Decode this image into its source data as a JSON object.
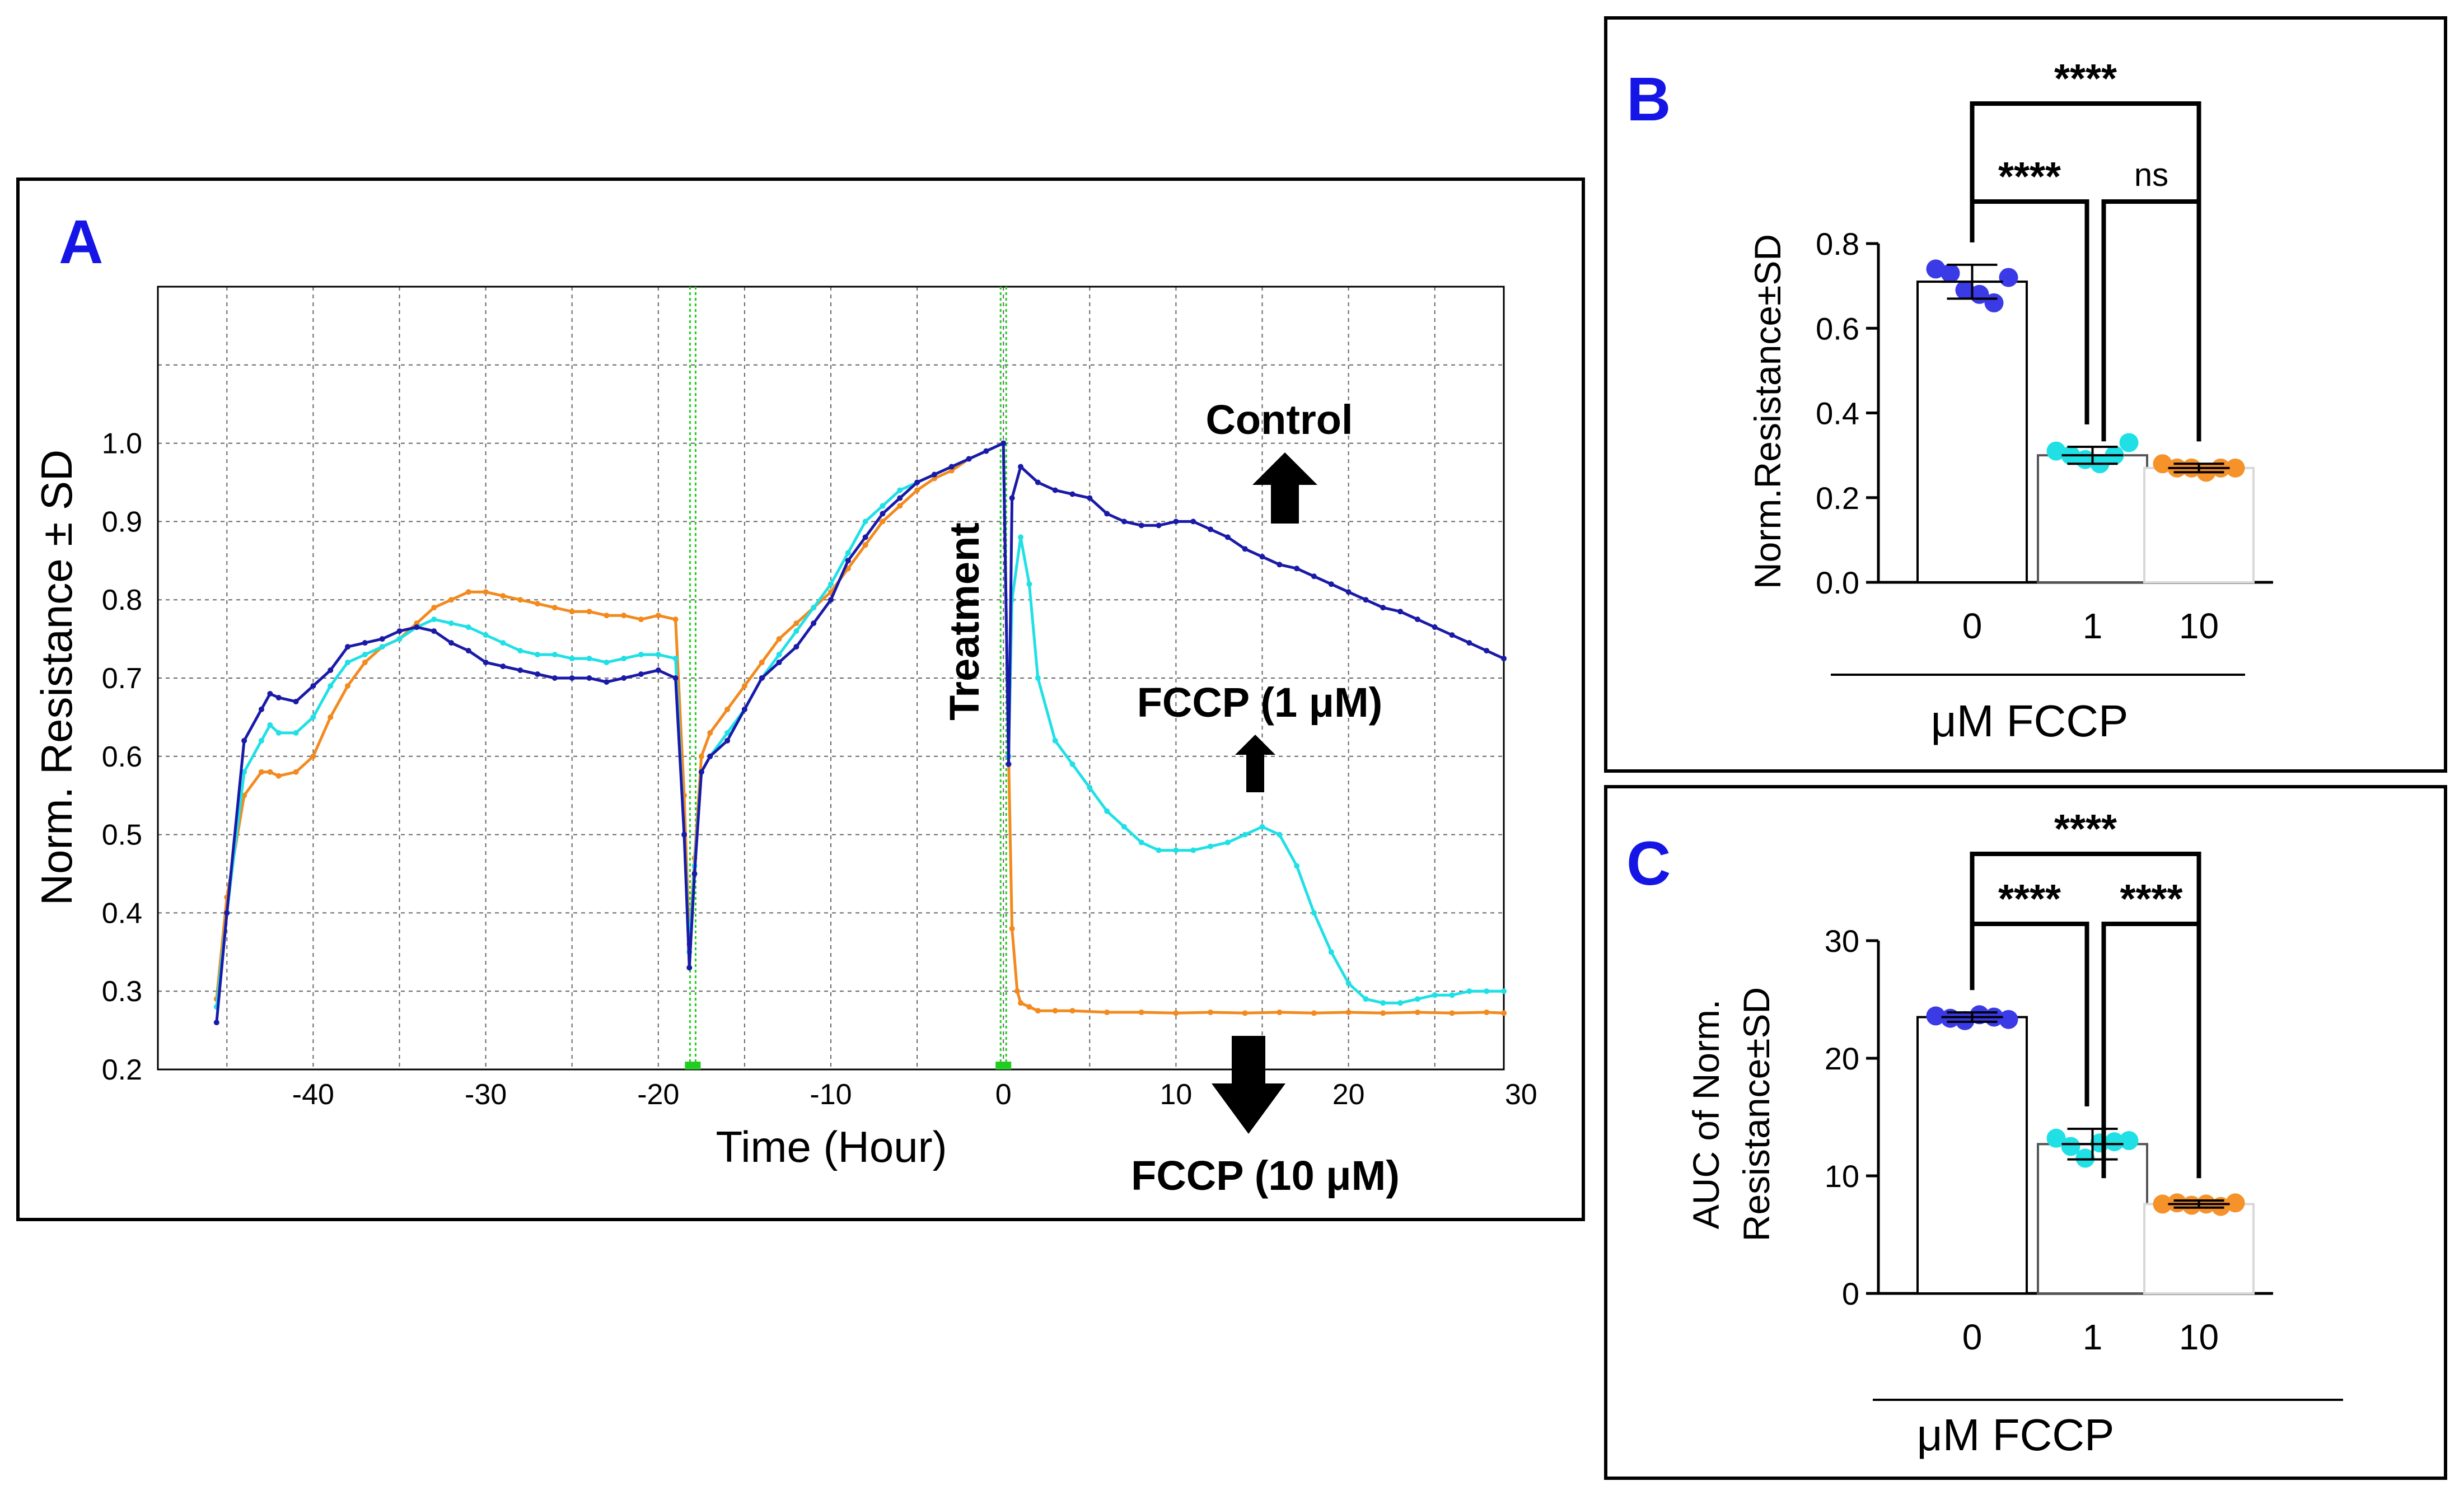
{
  "chart_data": [
    {
      "panel_letter": "A",
      "type": "line",
      "xlabel": "Time (Hour)",
      "ylabel": "Norm. Resistance ± SD",
      "xlim": [
        -49,
        29
      ],
      "ylim": [
        0.2,
        1.2
      ],
      "x_ticks": [
        -40,
        -30,
        -20,
        -10,
        0,
        10,
        20,
        30
      ],
      "y_ticks": [
        0.2,
        0.3,
        0.4,
        0.5,
        0.6,
        0.7,
        0.8,
        0.9,
        1.0
      ],
      "grid": true,
      "annotations": [
        "Control",
        "FCCP (1 μM)",
        "FCCP (10 μM)",
        "Treatment"
      ],
      "vertical_markers": [
        -18,
        0
      ],
      "colors": {
        "control": "#1a1aa8",
        "fccp_1": "#20e0e6",
        "fccp_10": "#f28a1e",
        "marker": "#22cc22"
      },
      "series": [
        {
          "x": [
            -45.6,
            -45,
            -44,
            -43,
            -42.5,
            -42,
            -41,
            -40,
            -39,
            -38,
            -37,
            -36,
            -35,
            -34,
            -33,
            -32,
            -31,
            -30,
            -29,
            -28,
            -27,
            -26,
            -25,
            -24,
            -23,
            -22,
            -21,
            -20,
            -19,
            -18.5,
            -18.2,
            -17.9,
            -17.5,
            -17,
            -16,
            -15,
            -14,
            -13,
            -12,
            -11,
            -10,
            -9,
            -8,
            -7,
            -6,
            -5,
            -4,
            -3,
            -2,
            -1,
            0,
            0.3,
            0.5,
            1,
            2,
            3,
            4,
            5,
            6,
            7,
            8,
            9,
            10,
            11,
            12,
            13,
            14,
            15,
            16,
            17,
            18,
            19,
            20,
            21,
            22,
            23,
            24,
            25,
            26,
            27,
            28,
            29
          ],
          "y": [
            0.26,
            0.4,
            0.62,
            0.66,
            0.68,
            0.675,
            0.67,
            0.69,
            0.71,
            0.74,
            0.745,
            0.75,
            0.76,
            0.765,
            0.76,
            0.745,
            0.735,
            0.72,
            0.715,
            0.71,
            0.705,
            0.7,
            0.7,
            0.7,
            0.695,
            0.7,
            0.705,
            0.71,
            0.7,
            0.5,
            0.33,
            0.45,
            0.58,
            0.6,
            0.62,
            0.66,
            0.7,
            0.72,
            0.74,
            0.77,
            0.8,
            0.85,
            0.88,
            0.91,
            0.93,
            0.95,
            0.96,
            0.97,
            0.98,
            0.99,
            1.0,
            0.59,
            0.93,
            0.97,
            0.95,
            0.94,
            0.935,
            0.93,
            0.91,
            0.9,
            0.895,
            0.895,
            0.9,
            0.9,
            0.89,
            0.88,
            0.865,
            0.855,
            0.845,
            0.84,
            0.83,
            0.82,
            0.81,
            0.8,
            0.79,
            0.785,
            0.775,
            0.765,
            0.755,
            0.745,
            0.735,
            0.725
          ]
        },
        {
          "x": [
            -45.6,
            -45,
            -44,
            -43,
            -42.5,
            -42,
            -41,
            -40,
            -39,
            -38,
            -37,
            -36,
            -35,
            -34,
            -33,
            -32,
            -31,
            -30,
            -29,
            -28,
            -27,
            -26,
            -25,
            -24,
            -23,
            -22,
            -21,
            -20,
            -19,
            -18.5,
            -18.2,
            -17.9,
            -17.5,
            -17,
            -16,
            -15,
            -14,
            -13,
            -12,
            -11,
            -10,
            -9,
            -8,
            -7,
            -6,
            -5,
            -4,
            -3,
            -2,
            -1,
            0,
            0.3,
            0.5,
            1,
            1.5,
            2,
            3,
            4,
            5,
            6,
            7,
            8,
            9,
            10,
            11,
            12,
            13,
            14,
            15,
            16,
            17,
            18,
            19,
            20,
            21,
            22,
            23,
            24,
            25,
            26,
            27,
            28,
            29
          ],
          "y": [
            0.28,
            0.4,
            0.58,
            0.62,
            0.64,
            0.63,
            0.63,
            0.65,
            0.69,
            0.72,
            0.73,
            0.74,
            0.75,
            0.765,
            0.775,
            0.77,
            0.765,
            0.755,
            0.745,
            0.735,
            0.73,
            0.73,
            0.725,
            0.725,
            0.72,
            0.725,
            0.73,
            0.73,
            0.725,
            0.5,
            0.35,
            0.46,
            0.58,
            0.6,
            0.63,
            0.66,
            0.7,
            0.73,
            0.76,
            0.79,
            0.82,
            0.86,
            0.9,
            0.92,
            0.94,
            0.95,
            0.96,
            0.97,
            0.98,
            0.99,
            1.0,
            0.6,
            0.8,
            0.88,
            0.82,
            0.7,
            0.62,
            0.59,
            0.56,
            0.53,
            0.51,
            0.49,
            0.48,
            0.48,
            0.48,
            0.485,
            0.49,
            0.5,
            0.51,
            0.5,
            0.46,
            0.4,
            0.35,
            0.31,
            0.29,
            0.285,
            0.285,
            0.29,
            0.295,
            0.295,
            0.3,
            0.3,
            0.3
          ]
        },
        {
          "x": [
            -45.6,
            -45,
            -44,
            -43,
            -42.5,
            -42,
            -41,
            -40,
            -39,
            -38,
            -37,
            -36,
            -35,
            -34,
            -33,
            -32,
            -31,
            -30,
            -29,
            -28,
            -27,
            -26,
            -25,
            -24,
            -23,
            -22,
            -21,
            -20,
            -19,
            -18.5,
            -18.2,
            -17.9,
            -17.5,
            -17,
            -16,
            -15,
            -14,
            -13,
            -12,
            -11,
            -10,
            -9,
            -8,
            -7,
            -6,
            -5,
            -4,
            -3,
            -2,
            -1,
            0,
            0.3,
            0.5,
            0.8,
            1,
            1.5,
            2,
            3,
            4,
            6,
            8,
            10,
            12,
            14,
            16,
            18,
            20,
            22,
            24,
            26,
            28,
            29
          ],
          "y": [
            0.29,
            0.42,
            0.55,
            0.58,
            0.58,
            0.575,
            0.58,
            0.6,
            0.65,
            0.69,
            0.72,
            0.74,
            0.75,
            0.77,
            0.79,
            0.8,
            0.81,
            0.81,
            0.805,
            0.8,
            0.795,
            0.79,
            0.785,
            0.785,
            0.78,
            0.78,
            0.775,
            0.78,
            0.775,
            0.55,
            0.36,
            0.47,
            0.6,
            0.63,
            0.66,
            0.69,
            0.72,
            0.75,
            0.77,
            0.79,
            0.81,
            0.84,
            0.87,
            0.9,
            0.92,
            0.94,
            0.955,
            0.965,
            0.98,
            0.99,
            1.0,
            0.6,
            0.38,
            0.3,
            0.285,
            0.28,
            0.275,
            0.275,
            0.275,
            0.273,
            0.273,
            0.272,
            0.273,
            0.272,
            0.273,
            0.272,
            0.273,
            0.272,
            0.273,
            0.272,
            0.273,
            0.272
          ]
        }
      ]
    },
    {
      "panel_letter": "B",
      "type": "bar",
      "ylabel": "Norm.Resistance±SD",
      "xlabel": "μM FCCP",
      "categories": [
        "0",
        "1",
        "10"
      ],
      "values": [
        0.71,
        0.3,
        0.27
      ],
      "sd": [
        0.04,
        0.02,
        0.01
      ],
      "points": [
        [
          0.74,
          0.73,
          0.69,
          0.68,
          0.66,
          0.72
        ],
        [
          0.31,
          0.3,
          0.29,
          0.28,
          0.3,
          0.33
        ],
        [
          0.28,
          0.27,
          0.27,
          0.26,
          0.27,
          0.27
        ]
      ],
      "ylim": [
        0.0,
        0.8
      ],
      "y_ticks": [
        "0.0",
        "0.2",
        "0.4",
        "0.6",
        "0.8"
      ],
      "significance": [
        {
          "pair": [
            0,
            2
          ],
          "label": "****"
        },
        {
          "pair": [
            0,
            1
          ],
          "label": "****"
        },
        {
          "pair": [
            1,
            2
          ],
          "label": "ns"
        }
      ],
      "colors": [
        "#3a3ae6",
        "#20e0e6",
        "#f5922a"
      ]
    },
    {
      "panel_letter": "C",
      "type": "bar",
      "ylabel_line1": "AUC of Norm.",
      "ylabel_line2": "Resistance±SD",
      "xlabel": "μM FCCP",
      "categories": [
        "0",
        "1",
        "10"
      ],
      "values": [
        23.5,
        12.7,
        7.6
      ],
      "sd": [
        0.4,
        1.3,
        0.3
      ],
      "points": [
        [
          23.6,
          23.4,
          23.2,
          23.7,
          23.5,
          23.3
        ],
        [
          13.2,
          12.5,
          11.5,
          12.8,
          12.9,
          13.0
        ],
        [
          7.6,
          7.7,
          7.5,
          7.6,
          7.4,
          7.7
        ]
      ],
      "ylim": [
        0,
        30
      ],
      "y_ticks": [
        "0",
        "10",
        "20",
        "30"
      ],
      "significance": [
        {
          "pair": [
            0,
            2
          ],
          "label": "****"
        },
        {
          "pair": [
            0,
            1
          ],
          "label": "****"
        },
        {
          "pair": [
            1,
            2
          ],
          "label": "****"
        }
      ],
      "colors": [
        "#3a3ae6",
        "#20e0e6",
        "#f5922a"
      ]
    }
  ]
}
